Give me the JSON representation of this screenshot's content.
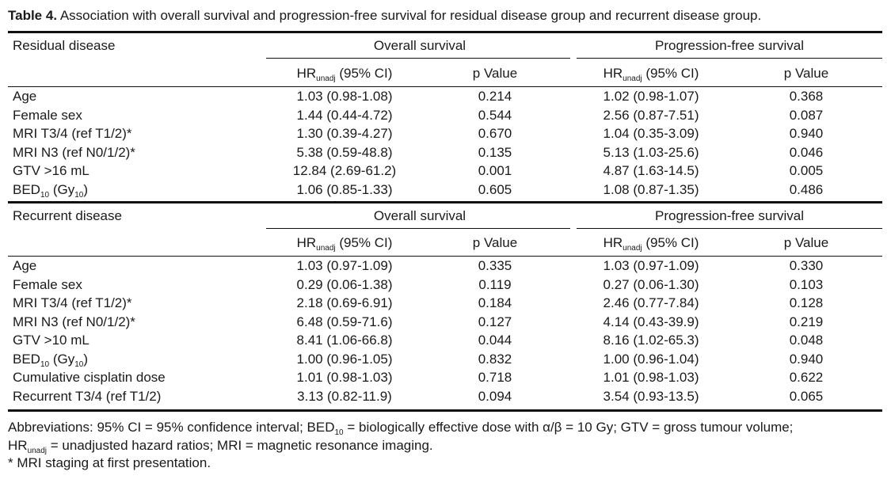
{
  "caption": {
    "label": "Table 4.",
    "text": " Association with overall survival and progression-free survival for residual disease group and recurrent disease group."
  },
  "sections": [
    {
      "group_label": "Residual disease",
      "os_label": "Overall survival",
      "pfs_label": "Progression-free survival",
      "hr_main": "HR",
      "hr_sub": "unadj",
      "hr_rest": " (95% CI)",
      "p_label": "p Value",
      "rows": [
        {
          "label": "Age",
          "label_sub": "",
          "label_rest": "",
          "label_sub2": "",
          "label_end": "",
          "os_hr": "1.03 (0.98-1.08)",
          "os_p": "0.214",
          "pfs_hr": "1.02 (0.98-1.07)",
          "pfs_p": "0.368"
        },
        {
          "label": "Female sex",
          "label_sub": "",
          "label_rest": "",
          "label_sub2": "",
          "label_end": "",
          "os_hr": "1.44 (0.44-4.72)",
          "os_p": "0.544",
          "pfs_hr": "2.56 (0.87-7.51)",
          "pfs_p": "0.087"
        },
        {
          "label": "MRI T3/4 (ref T1/2)*",
          "label_sub": "",
          "label_rest": "",
          "label_sub2": "",
          "label_end": "",
          "os_hr": "1.30 (0.39-4.27)",
          "os_p": "0.670",
          "pfs_hr": "1.04 (0.35-3.09)",
          "pfs_p": "0.940"
        },
        {
          "label": "MRI N3 (ref N0/1/2)*",
          "label_sub": "",
          "label_rest": "",
          "label_sub2": "",
          "label_end": "",
          "os_hr": "5.38 (0.59-48.8)",
          "os_p": "0.135",
          "pfs_hr": "5.13 (1.03-25.6)",
          "pfs_p": "0.046"
        },
        {
          "label": "GTV >16 mL",
          "label_sub": "",
          "label_rest": "",
          "label_sub2": "",
          "label_end": "",
          "os_hr": "12.84 (2.69-61.2)",
          "os_p": "0.001",
          "pfs_hr": "4.87 (1.63-14.5)",
          "pfs_p": "0.005"
        },
        {
          "label": "BED",
          "label_sub": "10",
          "label_rest": " (Gy",
          "label_sub2": "10",
          "label_end": ")",
          "os_hr": "1.06 (0.85-1.33)",
          "os_p": "0.605",
          "pfs_hr": "1.08 (0.87-1.35)",
          "pfs_p": "0.486"
        }
      ]
    },
    {
      "group_label": "Recurrent disease",
      "os_label": "Overall survival",
      "pfs_label": "Progression-free survival",
      "hr_main": "HR",
      "hr_sub": "unadj",
      "hr_rest": " (95% CI)",
      "p_label": "p Value",
      "rows": [
        {
          "label": "Age",
          "label_sub": "",
          "label_rest": "",
          "label_sub2": "",
          "label_end": "",
          "os_hr": "1.03 (0.97-1.09)",
          "os_p": "0.335",
          "pfs_hr": "1.03 (0.97-1.09)",
          "pfs_p": "0.330"
        },
        {
          "label": "Female sex",
          "label_sub": "",
          "label_rest": "",
          "label_sub2": "",
          "label_end": "",
          "os_hr": "0.29 (0.06-1.38)",
          "os_p": "0.119",
          "pfs_hr": "0.27 (0.06-1.30)",
          "pfs_p": "0.103"
        },
        {
          "label": "MRI T3/4 (ref T1/2)*",
          "label_sub": "",
          "label_rest": "",
          "label_sub2": "",
          "label_end": "",
          "os_hr": "2.18 (0.69-6.91)",
          "os_p": "0.184",
          "pfs_hr": "2.46 (0.77-7.84)",
          "pfs_p": "0.128"
        },
        {
          "label": "MRI N3 (ref N0/1/2)*",
          "label_sub": "",
          "label_rest": "",
          "label_sub2": "",
          "label_end": "",
          "os_hr": "6.48 (0.59-71.6)",
          "os_p": "0.127",
          "pfs_hr": "4.14 (0.43-39.9)",
          "pfs_p": "0.219"
        },
        {
          "label": "GTV >10 mL",
          "label_sub": "",
          "label_rest": "",
          "label_sub2": "",
          "label_end": "",
          "os_hr": "8.41 (1.06-66.8)",
          "os_p": "0.044",
          "pfs_hr": "8.16 (1.02-65.3)",
          "pfs_p": "0.048"
        },
        {
          "label": "BED",
          "label_sub": "10",
          "label_rest": " (Gy",
          "label_sub2": "10",
          "label_end": ")",
          "os_hr": "1.00 (0.96-1.05)",
          "os_p": "0.832",
          "pfs_hr": "1.00 (0.96-1.04)",
          "pfs_p": "0.940"
        },
        {
          "label": "Cumulative cisplatin dose",
          "label_sub": "",
          "label_rest": "",
          "label_sub2": "",
          "label_end": "",
          "os_hr": "1.01 (0.98-1.03)",
          "os_p": "0.718",
          "pfs_hr": "1.01 (0.98-1.03)",
          "pfs_p": "0.622"
        },
        {
          "label": "Recurrent T3/4 (ref T1/2)",
          "label_sub": "",
          "label_rest": "",
          "label_sub2": "",
          "label_end": "",
          "os_hr": "3.13 (0.82-11.9)",
          "os_p": "0.094",
          "pfs_hr": "3.54 (0.93-13.5)",
          "pfs_p": "0.065"
        }
      ]
    }
  ],
  "footnotes": {
    "line1_a": "Abbreviations: 95% CI = 95% confidence interval; BED",
    "line1_sub": "10",
    "line1_b": " = biologically effective dose with α/β = 10 Gy; GTV = gross tumour volume;",
    "line2_a": "HR",
    "line2_sub": "unadj",
    "line2_b": " = unadjusted hazard ratios; MRI = magnetic resonance imaging.",
    "line3": "* MRI staging at first presentation."
  }
}
